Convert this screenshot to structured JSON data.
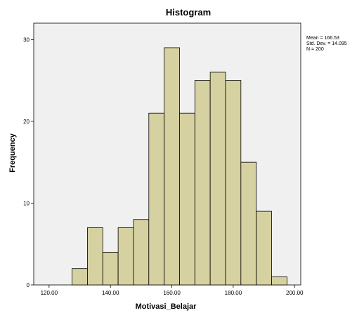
{
  "chart_data": {
    "type": "bar",
    "title": "Histogram",
    "xlabel": "Motivasi_Belajar",
    "ylabel": "Frequency",
    "xlim": [
      115,
      202
    ],
    "ylim": [
      0,
      32
    ],
    "x_ticks": [
      120,
      140,
      160,
      180,
      200
    ],
    "x_tick_labels": [
      "120.00",
      "140.00",
      "160.00",
      "180.00",
      "200.00"
    ],
    "y_ticks": [
      0,
      10,
      20,
      30
    ],
    "y_tick_labels": [
      "0",
      "10",
      "20",
      "30"
    ],
    "bins": [
      {
        "start": 127.5,
        "end": 132.5,
        "count": 2
      },
      {
        "start": 132.5,
        "end": 137.5,
        "count": 7
      },
      {
        "start": 137.5,
        "end": 142.5,
        "count": 4
      },
      {
        "start": 142.5,
        "end": 147.5,
        "count": 7
      },
      {
        "start": 147.5,
        "end": 152.5,
        "count": 8
      },
      {
        "start": 152.5,
        "end": 157.5,
        "count": 21
      },
      {
        "start": 157.5,
        "end": 162.5,
        "count": 29
      },
      {
        "start": 162.5,
        "end": 167.5,
        "count": 21
      },
      {
        "start": 167.5,
        "end": 172.5,
        "count": 25
      },
      {
        "start": 172.5,
        "end": 177.5,
        "count": 26
      },
      {
        "start": 177.5,
        "end": 182.5,
        "count": 25
      },
      {
        "start": 182.5,
        "end": 187.5,
        "count": 15
      },
      {
        "start": 187.5,
        "end": 192.5,
        "count": 9
      },
      {
        "start": 192.5,
        "end": 197.5,
        "count": 1
      }
    ],
    "bar_color": "#d6d1a1",
    "bar_edge_color": "#000000",
    "plot_background": "#f0f0f0",
    "grid": false,
    "stats": {
      "mean": "Mean = 166.53",
      "std_dev": "Std. Dev. = 14.095",
      "n": "N = 200"
    }
  }
}
